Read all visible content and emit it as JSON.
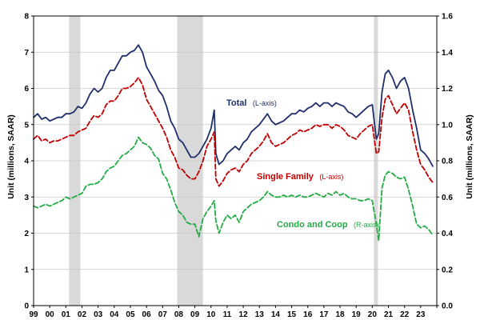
{
  "chart_data": {
    "type": "line",
    "title": "",
    "ylabel_left": "Unit (millions, SAAR)",
    "ylabel_right": "Unit (millions, SAAR)",
    "ylim_left": [
      0,
      8
    ],
    "ylim_right": [
      0,
      1.6
    ],
    "yticks_left": [
      "0",
      "1",
      "2",
      "3",
      "4",
      "5",
      "6",
      "7",
      "8"
    ],
    "yticks_right": [
      "0.0",
      "0.2",
      "0.4",
      "0.6",
      "0.8",
      "1.0",
      "1.2",
      "1.4",
      "1.6"
    ],
    "xlim": [
      1999.0,
      2024.0
    ],
    "xtick_labels": [
      "99",
      "00",
      "01",
      "02",
      "03",
      "04",
      "05",
      "06",
      "07",
      "08",
      "09",
      "10",
      "11",
      "12",
      "13",
      "14",
      "15",
      "16",
      "17",
      "18",
      "19",
      "20",
      "21",
      "22",
      "23"
    ],
    "grid": true,
    "legend": "none",
    "recessions": [
      [
        2001.2,
        2001.9
      ],
      [
        2007.9,
        2009.5
      ],
      [
        2020.1,
        2020.35
      ]
    ],
    "annotations": [
      {
        "series": "Total",
        "main": "Total",
        "sub": "(L-axis)",
        "color": "#1f2f6b"
      },
      {
        "series": "Single Family",
        "main": "Single Family",
        "sub": "(L-axis)",
        "color": "#c00000"
      },
      {
        "series": "Condo and Coop",
        "main": "Condo and Coop",
        "sub": "(R-axis)",
        "color": "#22aa44"
      }
    ],
    "series": [
      {
        "name": "Total",
        "axis": "left",
        "color": "#1f2f6b",
        "dash": "none",
        "x": [
          1999.0,
          1999.25,
          1999.5,
          1999.75,
          2000.0,
          2000.25,
          2000.5,
          2000.75,
          2001.0,
          2001.25,
          2001.5,
          2001.75,
          2002.0,
          2002.25,
          2002.5,
          2002.75,
          2003.0,
          2003.25,
          2003.5,
          2003.75,
          2004.0,
          2004.25,
          2004.5,
          2004.75,
          2005.0,
          2005.25,
          2005.5,
          2005.75,
          2006.0,
          2006.25,
          2006.5,
          2006.75,
          2007.0,
          2007.25,
          2007.5,
          2007.75,
          2008.0,
          2008.25,
          2008.5,
          2008.75,
          2009.0,
          2009.25,
          2009.5,
          2009.75,
          2010.0,
          2010.2,
          2010.3,
          2010.5,
          2010.75,
          2011.0,
          2011.25,
          2011.5,
          2011.75,
          2012.0,
          2012.25,
          2012.5,
          2012.75,
          2013.0,
          2013.25,
          2013.5,
          2013.75,
          2014.0,
          2014.25,
          2014.5,
          2014.75,
          2015.0,
          2015.25,
          2015.5,
          2015.75,
          2016.0,
          2016.25,
          2016.5,
          2016.75,
          2017.0,
          2017.25,
          2017.5,
          2017.75,
          2018.0,
          2018.25,
          2018.5,
          2018.75,
          2019.0,
          2019.25,
          2019.5,
          2019.75,
          2020.0,
          2020.25,
          2020.4,
          2020.6,
          2020.8,
          2021.0,
          2021.25,
          2021.5,
          2021.75,
          2022.0,
          2022.25,
          2022.5,
          2022.75,
          2023.0,
          2023.25,
          2023.5,
          2023.75
        ],
        "y": [
          5.2,
          5.3,
          5.15,
          5.2,
          5.1,
          5.15,
          5.2,
          5.2,
          5.3,
          5.3,
          5.35,
          5.5,
          5.45,
          5.6,
          5.85,
          6.0,
          5.9,
          6.0,
          6.3,
          6.5,
          6.5,
          6.7,
          6.9,
          6.9,
          7.0,
          7.05,
          7.2,
          7.0,
          6.6,
          6.4,
          6.2,
          5.95,
          5.8,
          5.5,
          5.1,
          4.9,
          4.6,
          4.5,
          4.3,
          4.1,
          4.1,
          4.2,
          4.4,
          4.6,
          4.9,
          5.4,
          4.2,
          3.9,
          4.0,
          4.2,
          4.3,
          4.4,
          4.3,
          4.5,
          4.6,
          4.8,
          4.9,
          5.0,
          5.15,
          5.3,
          5.1,
          5.0,
          5.05,
          5.1,
          5.2,
          5.3,
          5.3,
          5.4,
          5.35,
          5.45,
          5.5,
          5.6,
          5.5,
          5.6,
          5.6,
          5.5,
          5.6,
          5.55,
          5.5,
          5.35,
          5.3,
          5.2,
          5.3,
          5.4,
          5.5,
          5.55,
          4.6,
          4.75,
          5.9,
          6.4,
          6.5,
          6.3,
          6.0,
          6.2,
          6.3,
          6.0,
          5.4,
          4.9,
          4.3,
          4.2,
          4.05,
          3.85
        ]
      },
      {
        "name": "Single Family",
        "axis": "left",
        "color": "#c00000",
        "dash": "6,3",
        "x": [
          1999.0,
          1999.25,
          1999.5,
          1999.75,
          2000.0,
          2000.25,
          2000.5,
          2000.75,
          2001.0,
          2001.25,
          2001.5,
          2001.75,
          2002.0,
          2002.25,
          2002.5,
          2002.75,
          2003.0,
          2003.25,
          2003.5,
          2003.75,
          2004.0,
          2004.25,
          2004.5,
          2004.75,
          2005.0,
          2005.25,
          2005.5,
          2005.75,
          2006.0,
          2006.25,
          2006.5,
          2006.75,
          2007.0,
          2007.25,
          2007.5,
          2007.75,
          2008.0,
          2008.25,
          2008.5,
          2008.75,
          2009.0,
          2009.25,
          2009.5,
          2009.75,
          2010.0,
          2010.2,
          2010.3,
          2010.5,
          2010.75,
          2011.0,
          2011.25,
          2011.5,
          2011.75,
          2012.0,
          2012.25,
          2012.5,
          2012.75,
          2013.0,
          2013.25,
          2013.5,
          2013.75,
          2014.0,
          2014.25,
          2014.5,
          2014.75,
          2015.0,
          2015.25,
          2015.5,
          2015.75,
          2016.0,
          2016.25,
          2016.5,
          2016.75,
          2017.0,
          2017.25,
          2017.5,
          2017.75,
          2018.0,
          2018.25,
          2018.5,
          2018.75,
          2019.0,
          2019.25,
          2019.5,
          2019.75,
          2020.0,
          2020.25,
          2020.4,
          2020.6,
          2020.8,
          2021.0,
          2021.25,
          2021.5,
          2021.75,
          2022.0,
          2022.25,
          2022.5,
          2022.75,
          2023.0,
          2023.25,
          2023.5,
          2023.75
        ],
        "y": [
          4.6,
          4.7,
          4.55,
          4.6,
          4.5,
          4.55,
          4.55,
          4.6,
          4.65,
          4.7,
          4.7,
          4.8,
          4.85,
          4.9,
          5.1,
          5.25,
          5.2,
          5.3,
          5.55,
          5.65,
          5.65,
          5.8,
          6.0,
          6.0,
          6.05,
          6.15,
          6.3,
          6.1,
          5.7,
          5.5,
          5.3,
          5.1,
          4.9,
          4.65,
          4.3,
          4.1,
          3.8,
          3.75,
          3.6,
          3.5,
          3.5,
          3.7,
          4.0,
          4.4,
          4.6,
          4.8,
          3.5,
          3.3,
          3.45,
          3.65,
          3.75,
          3.8,
          3.7,
          3.9,
          4.0,
          4.2,
          4.3,
          4.4,
          4.55,
          4.75,
          4.5,
          4.4,
          4.45,
          4.5,
          4.6,
          4.7,
          4.75,
          4.85,
          4.8,
          4.85,
          4.9,
          5.0,
          4.95,
          5.0,
          5.0,
          4.9,
          5.0,
          4.95,
          4.85,
          4.7,
          4.65,
          4.6,
          4.75,
          4.85,
          4.95,
          5.0,
          4.2,
          4.25,
          5.2,
          5.7,
          5.8,
          5.55,
          5.3,
          5.45,
          5.6,
          5.4,
          4.8,
          4.3,
          3.9,
          3.75,
          3.55,
          3.4
        ]
      },
      {
        "name": "Condo and Coop",
        "axis": "right",
        "color": "#22aa44",
        "dash": "6,3",
        "x": [
          1999.0,
          1999.25,
          1999.5,
          1999.75,
          2000.0,
          2000.25,
          2000.5,
          2000.75,
          2001.0,
          2001.25,
          2001.5,
          2001.75,
          2002.0,
          2002.25,
          2002.5,
          2002.75,
          2003.0,
          2003.25,
          2003.5,
          2003.75,
          2004.0,
          2004.25,
          2004.5,
          2004.75,
          2005.0,
          2005.25,
          2005.5,
          2005.75,
          2006.0,
          2006.25,
          2006.5,
          2006.75,
          2007.0,
          2007.25,
          2007.5,
          2007.75,
          2008.0,
          2008.25,
          2008.5,
          2008.75,
          2009.0,
          2009.25,
          2009.5,
          2009.75,
          2010.0,
          2010.2,
          2010.3,
          2010.5,
          2010.75,
          2011.0,
          2011.25,
          2011.5,
          2011.75,
          2012.0,
          2012.25,
          2012.5,
          2012.75,
          2013.0,
          2013.25,
          2013.5,
          2013.75,
          2014.0,
          2014.25,
          2014.5,
          2014.75,
          2015.0,
          2015.25,
          2015.5,
          2015.75,
          2016.0,
          2016.25,
          2016.5,
          2016.75,
          2017.0,
          2017.25,
          2017.5,
          2017.75,
          2018.0,
          2018.25,
          2018.5,
          2018.75,
          2019.0,
          2019.25,
          2019.5,
          2019.75,
          2020.0,
          2020.25,
          2020.4,
          2020.6,
          2020.8,
          2021.0,
          2021.25,
          2021.5,
          2021.75,
          2022.0,
          2022.25,
          2022.5,
          2022.75,
          2023.0,
          2023.25,
          2023.5,
          2023.75
        ],
        "y": [
          0.55,
          0.54,
          0.55,
          0.56,
          0.55,
          0.56,
          0.57,
          0.58,
          0.6,
          0.59,
          0.6,
          0.61,
          0.62,
          0.66,
          0.67,
          0.67,
          0.68,
          0.7,
          0.74,
          0.76,
          0.77,
          0.8,
          0.83,
          0.84,
          0.86,
          0.88,
          0.93,
          0.9,
          0.89,
          0.87,
          0.83,
          0.81,
          0.73,
          0.7,
          0.64,
          0.57,
          0.52,
          0.5,
          0.46,
          0.45,
          0.45,
          0.38,
          0.48,
          0.52,
          0.55,
          0.58,
          0.47,
          0.4,
          0.46,
          0.5,
          0.48,
          0.5,
          0.46,
          0.52,
          0.54,
          0.56,
          0.57,
          0.58,
          0.6,
          0.63,
          0.61,
          0.6,
          0.6,
          0.61,
          0.6,
          0.61,
          0.6,
          0.61,
          0.6,
          0.6,
          0.61,
          0.62,
          0.61,
          0.6,
          0.62,
          0.61,
          0.63,
          0.61,
          0.62,
          0.6,
          0.59,
          0.59,
          0.58,
          0.58,
          0.59,
          0.58,
          0.45,
          0.36,
          0.65,
          0.72,
          0.74,
          0.73,
          0.71,
          0.7,
          0.71,
          0.64,
          0.55,
          0.45,
          0.43,
          0.44,
          0.42,
          0.39
        ]
      }
    ]
  }
}
